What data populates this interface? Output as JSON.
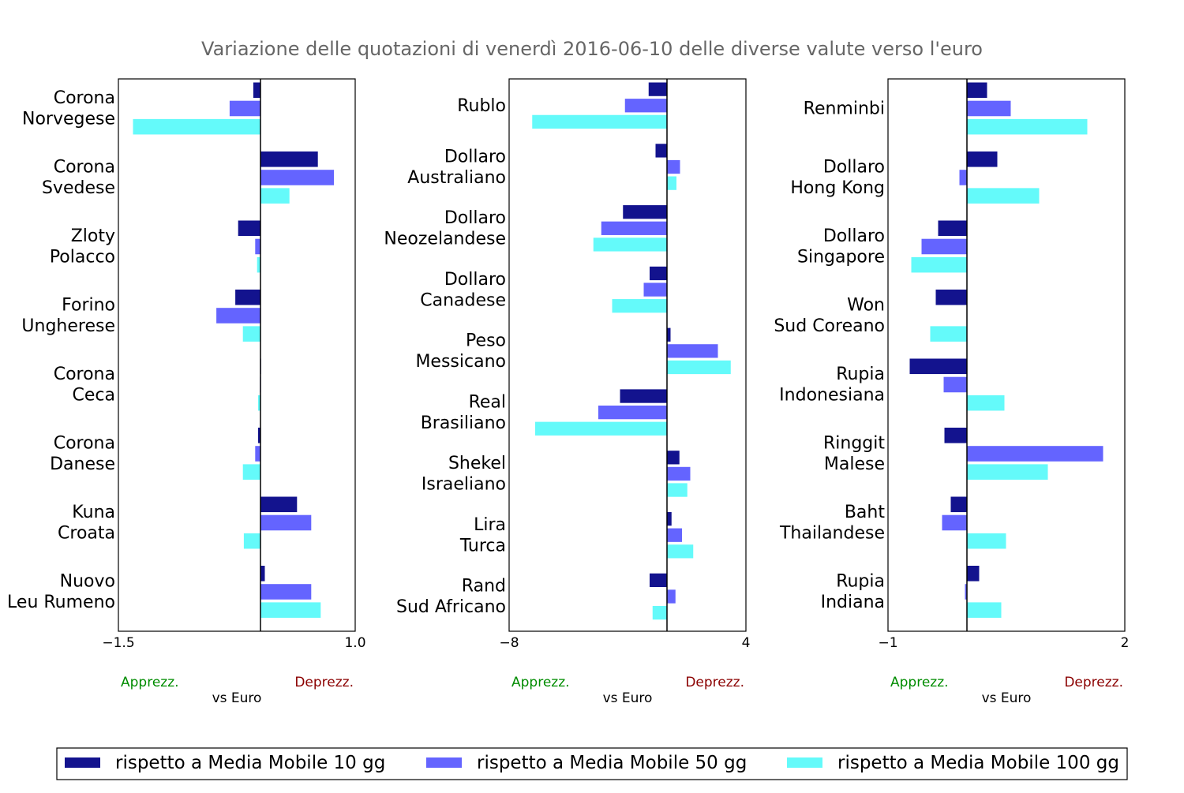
{
  "chart_data": {
    "type": "bar",
    "orientation": "horizontal",
    "title": "Variazione delle quotazioni di venerdì 2016-06-10 delle diverse valute verso l'euro",
    "legend": {
      "placement": "bottom",
      "entries": [
        {
          "name": "rispetto a Media Mobile 10 gg",
          "color": "#13138e"
        },
        {
          "name": "rispetto a Media Mobile 50 gg",
          "color": "#6464ff"
        },
        {
          "name": "rispetto a Media Mobile 100 gg",
          "color": "#64fafa"
        }
      ]
    },
    "panels": [
      {
        "xlabel": "vs Euro",
        "left_note": "Apprezz.",
        "right_note": "Deprezz.",
        "left_note_color": "#008c00",
        "right_note_color": "#8b0000",
        "xlim": [
          -1.5,
          1.0
        ],
        "xticks": [
          "−1.5",
          "1.0"
        ],
        "categories": [
          {
            "lines": [
              "Corona",
              "Norvegese"
            ],
            "values": [
              -0.08,
              -0.33,
              -1.35
            ]
          },
          {
            "lines": [
              "Corona",
              "Svedese"
            ],
            "values": [
              0.61,
              0.78,
              0.31
            ]
          },
          {
            "lines": [
              "Zloty",
              "Polacco"
            ],
            "values": [
              -0.24,
              -0.06,
              -0.04
            ]
          },
          {
            "lines": [
              "Forino",
              "Ungherese"
            ],
            "values": [
              -0.27,
              -0.47,
              -0.19
            ]
          },
          {
            "lines": [
              "Corona",
              "Ceca"
            ],
            "values": [
              0.01,
              -0.01,
              -0.03
            ]
          },
          {
            "lines": [
              "Corona",
              "Danese"
            ],
            "values": [
              -0.03,
              -0.06,
              -0.19
            ]
          },
          {
            "lines": [
              "Kuna",
              "Croata"
            ],
            "values": [
              0.39,
              0.54,
              -0.18
            ]
          },
          {
            "lines": [
              "Nuovo",
              "Leu Rumeno"
            ],
            "values": [
              0.05,
              0.54,
              0.64
            ]
          }
        ]
      },
      {
        "xlabel": "vs Euro",
        "left_note": "Apprezz.",
        "right_note": "Deprezz.",
        "left_note_color": "#008c00",
        "right_note_color": "#8b0000",
        "xlim": [
          -8,
          4
        ],
        "xticks": [
          "−8",
          "4"
        ],
        "categories": [
          {
            "lines": [
              "Rublo"
            ],
            "values": [
              -0.95,
              -2.15,
              -6.85
            ]
          },
          {
            "lines": [
              "Dollaro",
              "Australiano"
            ],
            "values": [
              -0.6,
              0.68,
              0.5
            ]
          },
          {
            "lines": [
              "Dollaro",
              "Neozelandese"
            ],
            "values": [
              -2.25,
              -3.35,
              -3.75
            ]
          },
          {
            "lines": [
              "Dollaro",
              "Canadese"
            ],
            "values": [
              -0.9,
              -1.2,
              -2.8
            ]
          },
          {
            "lines": [
              "Peso",
              "Messicano"
            ],
            "values": [
              0.2,
              2.6,
              3.25
            ]
          },
          {
            "lines": [
              "Real",
              "Brasiliano"
            ],
            "values": [
              -2.4,
              -3.5,
              -6.7
            ]
          },
          {
            "lines": [
              "Shekel",
              "Israeliano"
            ],
            "values": [
              0.65,
              1.2,
              1.05
            ]
          },
          {
            "lines": [
              "Lira",
              "Turca"
            ],
            "values": [
              0.25,
              0.78,
              1.35
            ]
          },
          {
            "lines": [
              "Rand",
              "Sud Africano"
            ],
            "values": [
              -0.9,
              0.45,
              -0.75
            ]
          }
        ]
      },
      {
        "xlabel": "vs Euro",
        "left_note": "Apprezz.",
        "right_note": "Deprezz.",
        "left_note_color": "#008c00",
        "right_note_color": "#8b0000",
        "xlim": [
          -1,
          2
        ],
        "xticks": [
          "−1",
          "2"
        ],
        "categories": [
          {
            "lines": [
              "Renminbi"
            ],
            "values": [
              0.26,
              0.56,
              1.53
            ]
          },
          {
            "lines": [
              "Dollaro",
              "Hong Kong"
            ],
            "values": [
              0.39,
              -0.1,
              0.92
            ]
          },
          {
            "lines": [
              "Dollaro",
              "Singapore"
            ],
            "values": [
              -0.37,
              -0.58,
              -0.71
            ]
          },
          {
            "lines": [
              "Won",
              "Sud Coreano"
            ],
            "values": [
              -0.4,
              0.0,
              -0.47
            ]
          },
          {
            "lines": [
              "Rupia",
              "Indonesiana"
            ],
            "values": [
              -0.73,
              -0.3,
              0.48
            ]
          },
          {
            "lines": [
              "Ringgit",
              "Malese"
            ],
            "values": [
              -0.29,
              1.73,
              1.03
            ]
          },
          {
            "lines": [
              "Baht",
              "Thailandese"
            ],
            "values": [
              -0.21,
              -0.32,
              0.5
            ]
          },
          {
            "lines": [
              "Rupia",
              "Indiana"
            ],
            "values": [
              0.16,
              -0.03,
              0.44
            ]
          }
        ]
      }
    ]
  }
}
